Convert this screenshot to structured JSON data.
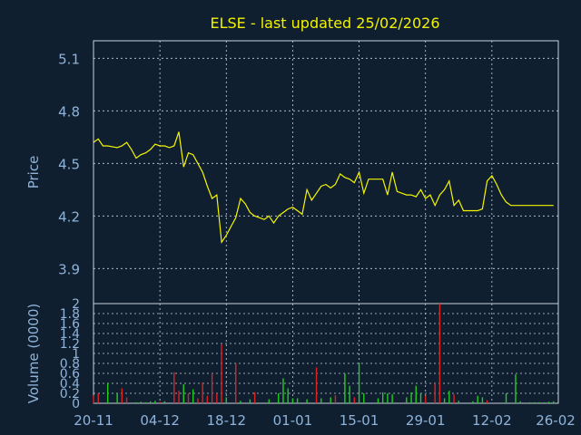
{
  "title": "ELSE - last updated 25/02/2026",
  "colors": {
    "background": "#0f1f30",
    "title": "#f2f200",
    "axis_text": "#8fb3d9",
    "grid": "#c8d2dc",
    "price_line": "#f5f500",
    "volume_up": "#22cc22",
    "volume_down": "#dd2222"
  },
  "chart_data": [
    {
      "type": "line",
      "name": "price",
      "ylabel": "Price",
      "ylim": [
        3.7,
        5.2
      ],
      "yticks": [
        3.9,
        4.2,
        4.5,
        4.8,
        5.1
      ],
      "ytick_labels": [
        "3.9",
        "4.2",
        "4.5",
        "4.8",
        "5.1"
      ],
      "x": [
        "20-11",
        "21-11",
        "22-11",
        "23-11",
        "25-11",
        "26-11",
        "27-11",
        "28-11",
        "29-11",
        "30-11",
        "01-12",
        "02-12",
        "03-12",
        "04-12",
        "05-12",
        "06-12",
        "07-12",
        "08-12",
        "09-12",
        "10-12",
        "11-12",
        "12-12",
        "13-12",
        "14-12",
        "15-12",
        "16-12",
        "17-12",
        "18-12",
        "19-12",
        "20-12",
        "21-12",
        "22-12",
        "23-12",
        "24-12",
        "26-12",
        "27-12",
        "28-12",
        "29-12",
        "30-12",
        "31-12",
        "01-01",
        "02-01",
        "03-01",
        "04-01",
        "05-01",
        "06-01",
        "07-01",
        "08-01",
        "09-01",
        "10-01",
        "11-01",
        "12-01",
        "13-01",
        "14-01",
        "15-01",
        "16-01",
        "17-01",
        "18-01",
        "19-01",
        "20-01",
        "21-01",
        "22-01",
        "23-01",
        "24-01",
        "25-01",
        "26-01",
        "27-01",
        "28-01",
        "29-01",
        "30-01",
        "31-01",
        "01-02",
        "02-02",
        "03-02",
        "04-02",
        "05-02",
        "06-02",
        "07-02",
        "08-02",
        "09-02",
        "10-02",
        "11-02",
        "12-02",
        "13-02",
        "14-02",
        "15-02",
        "16-02",
        "17-02",
        "18-02",
        "19-02",
        "20-02",
        "21-02",
        "22-02",
        "23-02",
        "24-02",
        "25-02"
      ],
      "values": [
        4.62,
        4.64,
        4.6,
        4.6,
        4.59,
        4.6,
        4.62,
        4.58,
        4.53,
        4.55,
        4.56,
        4.58,
        4.61,
        4.6,
        4.6,
        4.59,
        4.6,
        4.68,
        4.48,
        4.56,
        4.55,
        4.5,
        4.45,
        4.37,
        4.3,
        4.32,
        4.05,
        4.09,
        4.14,
        4.19,
        4.3,
        4.27,
        4.22,
        4.2,
        4.18,
        4.2,
        4.16,
        4.2,
        4.22,
        4.24,
        4.25,
        4.23,
        4.21,
        4.35,
        4.29,
        4.33,
        4.37,
        4.38,
        4.36,
        4.38,
        4.44,
        4.42,
        4.41,
        4.39,
        4.45,
        4.33,
        4.41,
        4.41,
        4.41,
        4.41,
        4.32,
        4.45,
        4.34,
        4.33,
        4.32,
        4.32,
        4.31,
        4.35,
        4.3,
        4.32,
        4.26,
        4.32,
        4.35,
        4.4,
        4.26,
        4.29,
        4.23,
        4.23,
        4.23,
        4.23,
        4.24,
        4.4,
        4.43,
        4.38,
        4.32,
        4.28,
        4.26,
        4.26,
        4.26,
        4.26,
        4.26,
        4.26,
        4.26,
        4.26,
        4.26,
        4.26
      ]
    },
    {
      "type": "bar",
      "name": "volume",
      "ylabel": "Volume (0000)",
      "ylim": [
        0,
        2
      ],
      "yticks": [
        0,
        0.2,
        0.4,
        0.6,
        0.8,
        1,
        1.2,
        1.4,
        1.6,
        1.8,
        2
      ],
      "ytick_labels": [
        "0",
        "0.2",
        "0.4",
        "0.6",
        "0.8",
        "1",
        "1.2",
        "1.4",
        "1.6",
        "1.8",
        "2"
      ],
      "bars": [
        {
          "x": "20-11",
          "v": 0.16,
          "d": "down"
        },
        {
          "x": "21-11",
          "v": 0.2,
          "d": "down"
        },
        {
          "x": "23-11",
          "v": 0.4,
          "d": "up"
        },
        {
          "x": "25-11",
          "v": 0.2,
          "d": "up"
        },
        {
          "x": "26-11",
          "v": 0.3,
          "d": "down"
        },
        {
          "x": "27-11",
          "v": 0.12,
          "d": "down"
        },
        {
          "x": "29-11",
          "v": 0.02,
          "d": "up"
        },
        {
          "x": "30-11",
          "v": 0.03,
          "d": "up"
        },
        {
          "x": "01-12",
          "v": 0.02,
          "d": "up"
        },
        {
          "x": "02-12",
          "v": 0.04,
          "d": "up"
        },
        {
          "x": "03-12",
          "v": 0.05,
          "d": "up"
        },
        {
          "x": "04-12",
          "v": 0.03,
          "d": "down"
        },
        {
          "x": "05-12",
          "v": 0.04,
          "d": "up"
        },
        {
          "x": "07-12",
          "v": 0.62,
          "d": "down"
        },
        {
          "x": "08-12",
          "v": 0.25,
          "d": "down"
        },
        {
          "x": "09-12",
          "v": 0.38,
          "d": "up"
        },
        {
          "x": "10-12",
          "v": 0.2,
          "d": "down"
        },
        {
          "x": "11-12",
          "v": 0.28,
          "d": "up"
        },
        {
          "x": "12-12",
          "v": 0.1,
          "d": "down"
        },
        {
          "x": "13-12",
          "v": 0.42,
          "d": "down"
        },
        {
          "x": "14-12",
          "v": 0.15,
          "d": "down"
        },
        {
          "x": "15-12",
          "v": 0.6,
          "d": "down"
        },
        {
          "x": "16-12",
          "v": 0.2,
          "d": "down"
        },
        {
          "x": "17-12",
          "v": 1.18,
          "d": "down"
        },
        {
          "x": "18-12",
          "v": 0.12,
          "d": "up"
        },
        {
          "x": "20-12",
          "v": 0.8,
          "d": "down"
        },
        {
          "x": "21-12",
          "v": 0.05,
          "d": "up"
        },
        {
          "x": "23-12",
          "v": 0.08,
          "d": "up"
        },
        {
          "x": "24-12",
          "v": 0.22,
          "d": "down"
        },
        {
          "x": "27-12",
          "v": 0.08,
          "d": "up"
        },
        {
          "x": "29-12",
          "v": 0.2,
          "d": "up"
        },
        {
          "x": "30-12",
          "v": 0.5,
          "d": "up"
        },
        {
          "x": "31-12",
          "v": 0.3,
          "d": "up"
        },
        {
          "x": "01-01",
          "v": 0.1,
          "d": "up"
        },
        {
          "x": "02-01",
          "v": 0.1,
          "d": "up"
        },
        {
          "x": "04-01",
          "v": 0.08,
          "d": "up"
        },
        {
          "x": "06-01",
          "v": 0.72,
          "d": "down"
        },
        {
          "x": "07-01",
          "v": 0.1,
          "d": "up"
        },
        {
          "x": "09-01",
          "v": 0.12,
          "d": "up"
        },
        {
          "x": "10-01",
          "v": 0.16,
          "d": "down"
        },
        {
          "x": "12-01",
          "v": 0.6,
          "d": "up"
        },
        {
          "x": "13-01",
          "v": 0.35,
          "d": "up"
        },
        {
          "x": "14-01",
          "v": 0.12,
          "d": "down"
        },
        {
          "x": "15-01",
          "v": 0.82,
          "d": "up"
        },
        {
          "x": "16-01",
          "v": 0.2,
          "d": "up"
        },
        {
          "x": "19-01",
          "v": 0.1,
          "d": "up"
        },
        {
          "x": "20-01",
          "v": 0.22,
          "d": "up"
        },
        {
          "x": "21-01",
          "v": 0.2,
          "d": "up"
        },
        {
          "x": "22-01",
          "v": 0.18,
          "d": "up"
        },
        {
          "x": "25-01",
          "v": 0.12,
          "d": "up"
        },
        {
          "x": "26-01",
          "v": 0.22,
          "d": "up"
        },
        {
          "x": "27-01",
          "v": 0.35,
          "d": "up"
        },
        {
          "x": "28-01",
          "v": 0.2,
          "d": "up"
        },
        {
          "x": "29-01",
          "v": 0.15,
          "d": "down"
        },
        {
          "x": "31-01",
          "v": 0.4,
          "d": "down"
        },
        {
          "x": "01-02",
          "v": 2.0,
          "d": "down"
        },
        {
          "x": "02-02",
          "v": 0.1,
          "d": "up"
        },
        {
          "x": "03-02",
          "v": 0.25,
          "d": "up"
        },
        {
          "x": "04-02",
          "v": 0.18,
          "d": "down"
        },
        {
          "x": "05-02",
          "v": 0.05,
          "d": "up"
        },
        {
          "x": "08-02",
          "v": 0.04,
          "d": "up"
        },
        {
          "x": "09-02",
          "v": 0.15,
          "d": "up"
        },
        {
          "x": "10-02",
          "v": 0.12,
          "d": "up"
        },
        {
          "x": "11-02",
          "v": 0.06,
          "d": "down"
        },
        {
          "x": "15-02",
          "v": 0.2,
          "d": "up"
        },
        {
          "x": "17-02",
          "v": 0.58,
          "d": "up"
        },
        {
          "x": "18-02",
          "v": 0.04,
          "d": "up"
        },
        {
          "x": "20-02",
          "v": 0.02,
          "d": "up"
        },
        {
          "x": "21-02",
          "v": 0.02,
          "d": "up"
        },
        {
          "x": "22-02",
          "v": 0.02,
          "d": "up"
        },
        {
          "x": "23-02",
          "v": 0.02,
          "d": "up"
        },
        {
          "x": "24-02",
          "v": 0.03,
          "d": "up"
        },
        {
          "x": "25-02",
          "v": 0.04,
          "d": "up"
        }
      ]
    }
  ],
  "xaxis": {
    "ticks": [
      "20-11",
      "04-12",
      "18-12",
      "01-01",
      "15-01",
      "29-01",
      "12-02",
      "26-02"
    ],
    "start": "20-11",
    "end": "26-02"
  },
  "grid": true
}
